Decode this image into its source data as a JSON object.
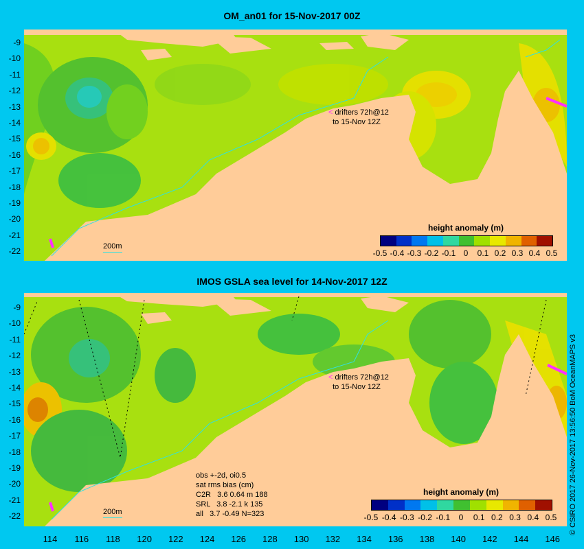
{
  "panels": [
    {
      "title": "OM_an01 for 15-Nov-2017 00Z",
      "drifter_line1": "drifters 72h@12",
      "drifter_line2": "to 15-Nov 12Z",
      "isobath_label": "200m"
    },
    {
      "title": "IMOS GSLA sea level  for 14-Nov-2017 12Z",
      "drifter_line1": "drifters 72h@12",
      "drifter_line2": "to 15-Nov 12Z",
      "isobath_label": "200m",
      "stats": {
        "line1": "obs +-2d, oi0.5",
        "line2": "sat rms bias (cm)",
        "line3": "C2R   3.6 0.64 m 188",
        "line4": "SRL   3.8 -2.1 k 135",
        "line5": "all   3.7 -0.49 N=323"
      }
    }
  ],
  "colorbar": {
    "title": "height anomaly (m)",
    "ticks": [
      "-0.5",
      "-0.4",
      "-0.3",
      "-0.2",
      "-0.1",
      "0",
      "0.1",
      "0.2",
      "0.3",
      "0.4",
      "0.5"
    ],
    "colors": [
      "#000080",
      "#0030c8",
      "#0078f0",
      "#00c0e8",
      "#30d8a0",
      "#40c030",
      "#a0e000",
      "#e8e800",
      "#f0b400",
      "#e06000",
      "#a01000"
    ]
  },
  "lat_ticks": [
    "-9",
    "-10",
    "-11",
    "-12",
    "-13",
    "-14",
    "-15",
    "-16",
    "-17",
    "-18",
    "-19",
    "-20",
    "-21",
    "-22"
  ],
  "lon_ticks": [
    "114",
    "116",
    "118",
    "120",
    "122",
    "124",
    "126",
    "128",
    "130",
    "132",
    "134",
    "136",
    "138",
    "140",
    "142",
    "144",
    "146"
  ],
  "credit": "© CSIRO 2017  26-Nov-2017 13:56:50 BoM OceanMAPS v3",
  "colors": {
    "background": "#00c8f0",
    "land": "#ffcc99",
    "ocean_base": "#a8e010",
    "drifter": "#ff30ff"
  }
}
